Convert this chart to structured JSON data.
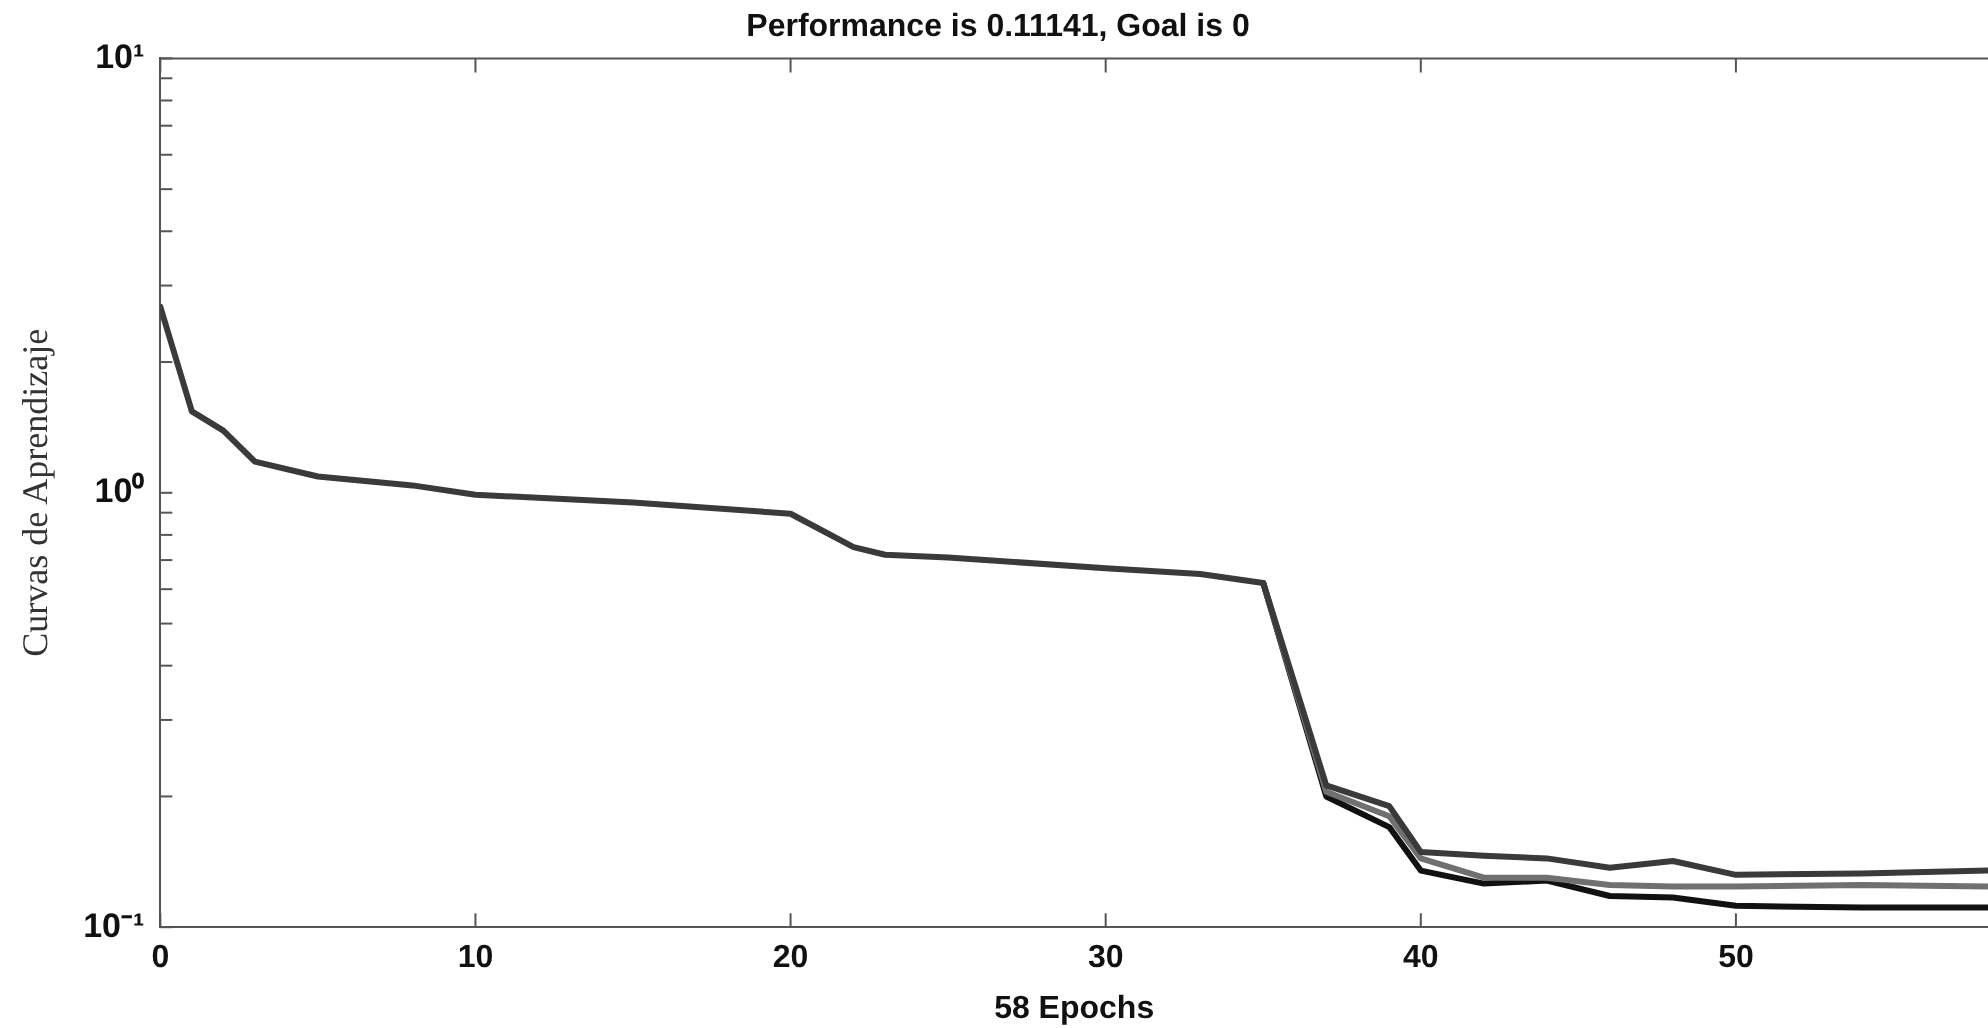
{
  "chart_data": {
    "type": "line",
    "title": "Performance is 0.11141, Goal is 0",
    "xlabel": "58 Epochs",
    "ylabel": "Curvas de Aprendizaje",
    "x": [
      0,
      1,
      2,
      3,
      5,
      8,
      10,
      15,
      20,
      22,
      23,
      25,
      30,
      33,
      35,
      37,
      39,
      40,
      42,
      44,
      46,
      48,
      50,
      54,
      58
    ],
    "series": [
      {
        "color": "#3a3a3a",
        "values": [
          2.68,
          1.54,
          1.39,
          1.18,
          1.09,
          1.04,
          0.99,
          0.95,
          0.895,
          0.75,
          0.72,
          0.71,
          0.67,
          0.65,
          0.62,
          0.212,
          0.19,
          0.149,
          0.146,
          0.144,
          0.137,
          0.142,
          0.132,
          0.133,
          0.135
        ]
      },
      {
        "color": "#707070",
        "values": [
          null,
          null,
          null,
          null,
          null,
          null,
          null,
          null,
          null,
          null,
          null,
          null,
          null,
          null,
          0.62,
          0.205,
          0.18,
          0.144,
          0.13,
          0.13,
          0.125,
          0.124,
          0.124,
          0.125,
          0.124
        ]
      },
      {
        "color": "#111111",
        "values": [
          null,
          null,
          null,
          null,
          null,
          null,
          null,
          null,
          null,
          null,
          null,
          null,
          null,
          null,
          0.62,
          0.2,
          0.17,
          0.135,
          0.126,
          0.128,
          0.118,
          0.117,
          0.112,
          0.111,
          0.111
        ]
      }
    ],
    "log": "y",
    "xlim": [
      0,
      58
    ],
    "xticks": [
      0,
      10,
      20,
      30,
      40,
      50
    ],
    "ylim": [
      0.1,
      10
    ],
    "yticks": [
      {
        "value": 0.1,
        "label": "10⁻¹"
      },
      {
        "value": 0.2,
        "label": null
      },
      {
        "value": 0.3,
        "label": null
      },
      {
        "value": 0.4,
        "label": null
      },
      {
        "value": 0.5,
        "label": null
      },
      {
        "value": 0.6,
        "label": null
      },
      {
        "value": 0.7,
        "label": null
      },
      {
        "value": 0.8,
        "label": null
      },
      {
        "value": 0.9,
        "label": null
      },
      {
        "value": 1,
        "label": "10⁰"
      },
      {
        "value": 2,
        "label": null
      },
      {
        "value": 3,
        "label": null
      },
      {
        "value": 4,
        "label": null
      },
      {
        "value": 5,
        "label": null
      },
      {
        "value": 6,
        "label": null
      },
      {
        "value": 7,
        "label": null
      },
      {
        "value": 8,
        "label": null
      },
      {
        "value": 9,
        "label": null
      },
      {
        "value": 10,
        "label": "10¹"
      }
    ],
    "grid": false,
    "legend": false,
    "marker": "none",
    "line_style": "solid"
  }
}
